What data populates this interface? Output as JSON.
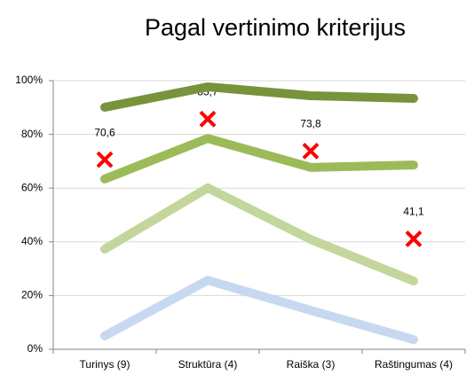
{
  "chart_data": {
    "type": "line",
    "title": "Pagal vertinimo kriterijus",
    "categories": [
      "Turinys (9)",
      "Struktūra (4)",
      "Raiška (3)",
      "Raštingumas (4)"
    ],
    "series": [
      {
        "color": "#77933c",
        "values": [
          90.1,
          97.7,
          94.4,
          93.4
        ]
      },
      {
        "color": "#9bbb59",
        "values": [
          63.4,
          78.5,
          67.7,
          68.6
        ]
      },
      {
        "color": "#c3d69b",
        "values": [
          37.3,
          60.1,
          40.9,
          25.4
        ]
      },
      {
        "color": "#c6d9f1",
        "values": [
          5,
          25.7,
          14.5,
          3.6
        ]
      },
      {
        "color": "#ff0000",
        "marker": "x",
        "values": [
          70.6,
          85.7,
          73.8,
          41.1
        ],
        "value_labels": [
          "70,6",
          "85,7",
          "73,8",
          "41,1"
        ]
      }
    ],
    "ylim": [
      0,
      100
    ],
    "yticks": [
      {
        "value": 0,
        "label": "0%"
      },
      {
        "value": 20,
        "label": "20%"
      },
      {
        "value": 40,
        "label": "40%"
      },
      {
        "value": 60,
        "label": "60%"
      },
      {
        "value": 80,
        "label": "80%"
      },
      {
        "value": 100,
        "label": "100%"
      }
    ],
    "grid": true
  }
}
